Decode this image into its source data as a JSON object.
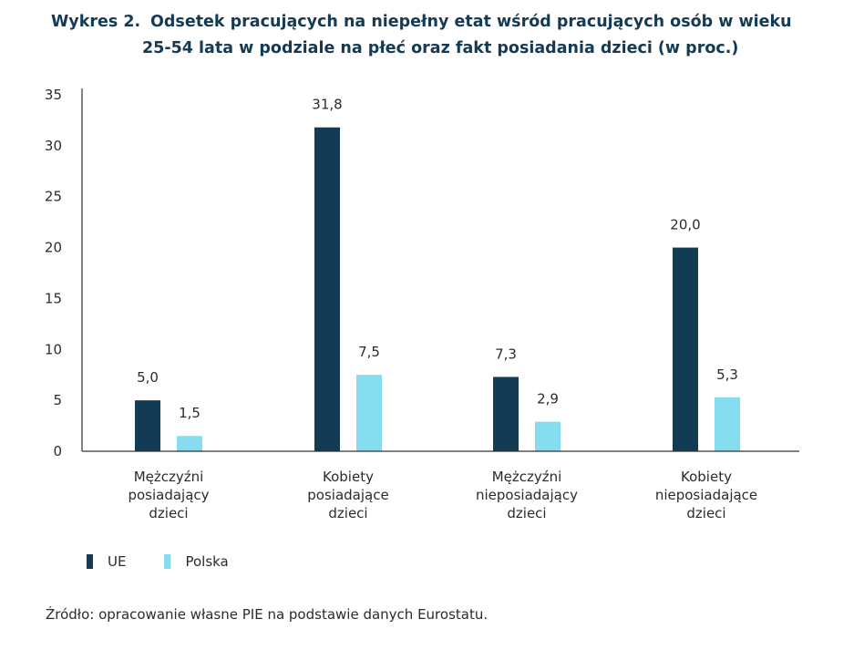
{
  "figure": {
    "number_label": "Wykres 2.",
    "title_line1": "Odsetek pracujących na niepełny etat wśród pracujących osób w wieku",
    "title_line2": "25-54 lata w podziale na płeć oraz fakt posiadania dzieci (w proc.)",
    "source": "Źródło: opracowanie własne PIE na podstawie danych Eurostatu."
  },
  "legend": {
    "ue": "UE",
    "polska": "Polska"
  },
  "colors": {
    "ue": "#133b53",
    "polska": "#86ddf0",
    "title": "#143b53"
  },
  "chart_data": {
    "type": "bar",
    "title": "Odsetek pracujących na niepełny etat wśród pracujących osób w wieku 25-54 lata w podziale na płeć oraz fakt posiadania dzieci (w proc.)",
    "categories": [
      [
        "Mężczyźni",
        "posiadający",
        "dzieci"
      ],
      [
        "Kobiety",
        "posiadające",
        "dzieci"
      ],
      [
        "Mężczyźni",
        "nieposiadający",
        "dzieci"
      ],
      [
        "Kobiety",
        "nieposiadające",
        "dzieci"
      ]
    ],
    "series": [
      {
        "name": "UE",
        "values": [
          5.0,
          31.8,
          7.3,
          20.0
        ],
        "labels": [
          "5,0",
          "31,8",
          "7,3",
          "20,0"
        ]
      },
      {
        "name": "Polska",
        "values": [
          1.5,
          7.5,
          2.9,
          5.3
        ],
        "labels": [
          "1,5",
          "7,5",
          "2,9",
          "5,3"
        ]
      }
    ],
    "ylim": [
      0,
      35
    ],
    "yticks": [
      0,
      5,
      10,
      15,
      20,
      25,
      30,
      35
    ],
    "xlabel": "",
    "ylabel": "",
    "grid": false,
    "legend_position": "bottom-left"
  }
}
